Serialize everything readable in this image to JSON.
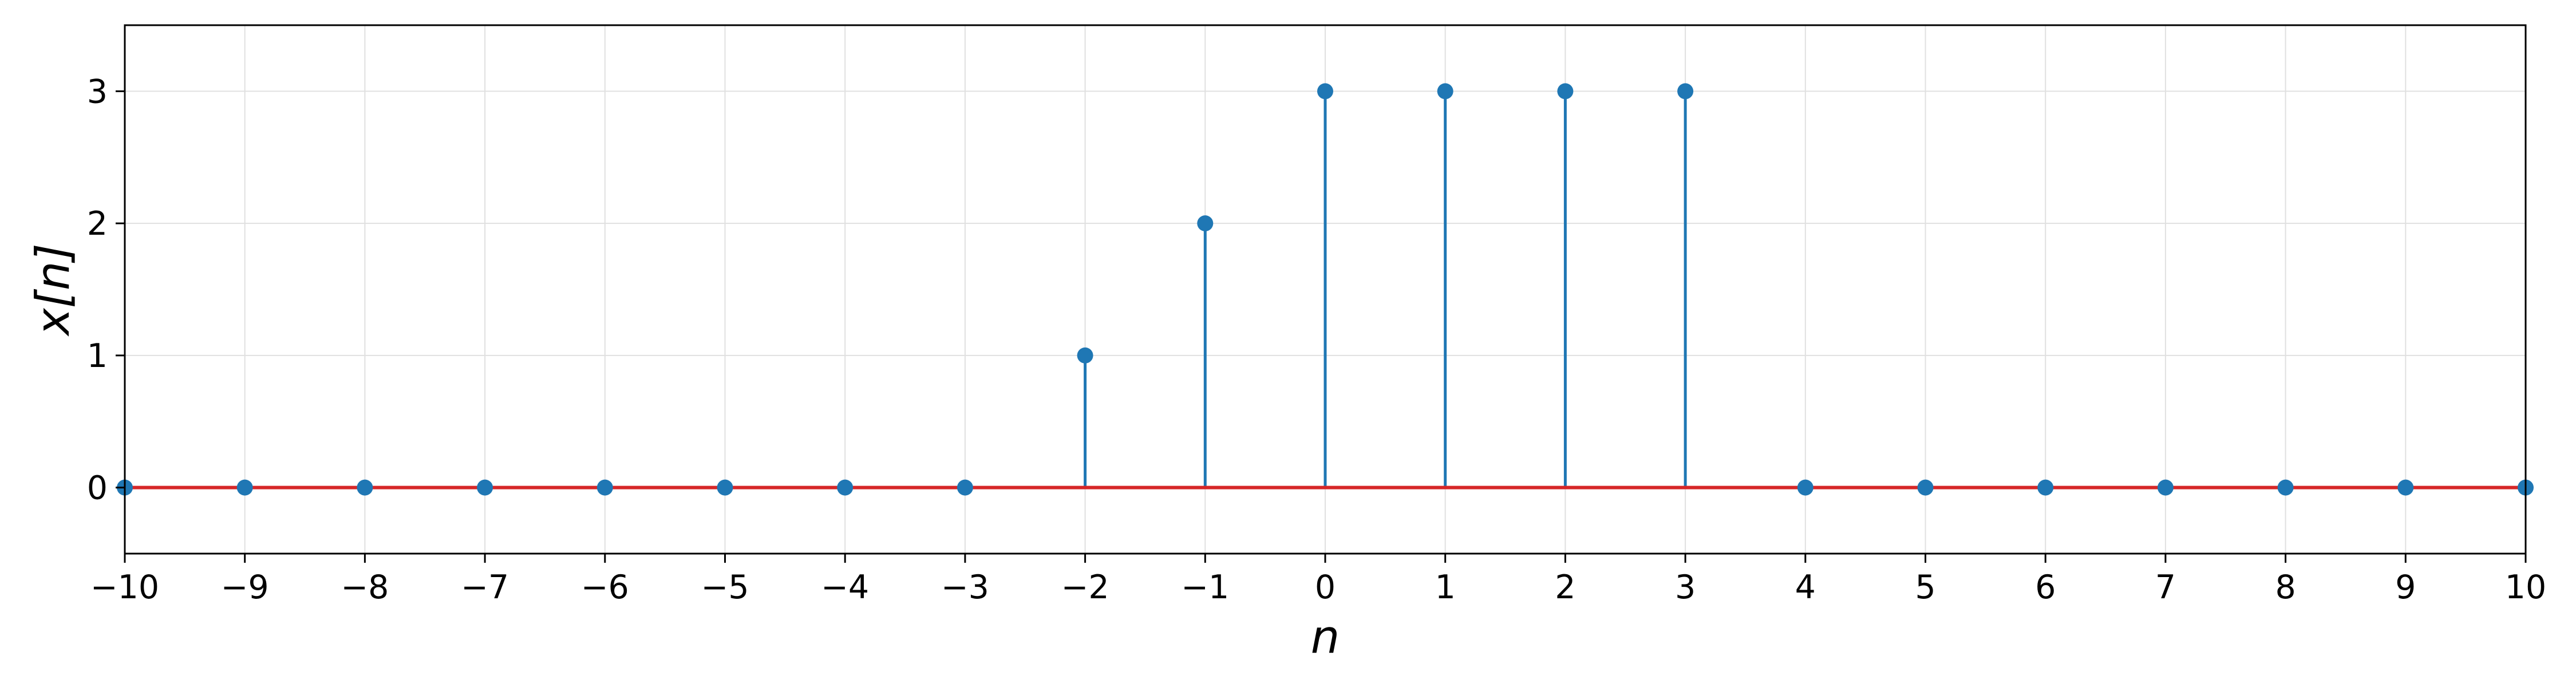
{
  "chart_data": {
    "type": "stem",
    "title": "",
    "xlabel": "n",
    "ylabel": "x[n]",
    "xlim": [
      -10,
      10
    ],
    "ylim": [
      -0.5,
      3.5
    ],
    "grid": true,
    "x_ticks": [
      -10,
      -9,
      -8,
      -7,
      -6,
      -5,
      -4,
      -3,
      -2,
      -1,
      0,
      1,
      2,
      3,
      4,
      5,
      6,
      7,
      8,
      9,
      10
    ],
    "x_tick_labels": [
      "−10",
      "−9",
      "−8",
      "−7",
      "−6",
      "−5",
      "−4",
      "−3",
      "−2",
      "−1",
      "0",
      "1",
      "2",
      "3",
      "4",
      "5",
      "6",
      "7",
      "8",
      "9",
      "10"
    ],
    "y_ticks": [
      0,
      1,
      2,
      3
    ],
    "y_tick_labels": [
      "0",
      "1",
      "2",
      "3"
    ],
    "series": [
      {
        "x": [
          -10,
          -9,
          -8,
          -7,
          -6,
          -5,
          -4,
          -3,
          -2,
          -1,
          0,
          1,
          2,
          3,
          4,
          5,
          6,
          7,
          8,
          9,
          10
        ],
        "y": [
          0,
          0,
          0,
          0,
          0,
          0,
          0,
          0,
          1,
          2,
          3,
          3,
          3,
          3,
          0,
          0,
          0,
          0,
          0,
          0,
          0
        ]
      }
    ],
    "colors": {
      "stem": "#1f77b4",
      "baseline": "#d62728",
      "grid": "#e0e0e0",
      "frame": "#000000"
    }
  }
}
